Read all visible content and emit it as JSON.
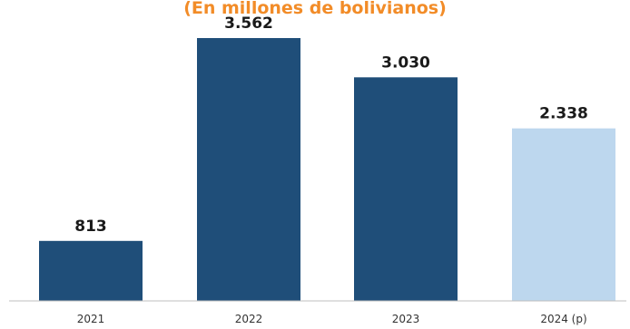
{
  "chart_data": {
    "type": "bar",
    "subtitle": "(En millones de bolivianos)",
    "categories": [
      "2021",
      "2022",
      "2023",
      "2024 (p)"
    ],
    "values": [
      813,
      3562,
      3030,
      2338
    ],
    "value_labels": [
      "813",
      "3.562",
      "3.030",
      "2.338"
    ],
    "xlabel": "",
    "ylabel": "",
    "ylim": [
      0,
      3562
    ],
    "grid": false,
    "legend": "none",
    "bar_colors": [
      "#1f4e79",
      "#1f4e79",
      "#1f4e79",
      "#bdd7ee"
    ],
    "subtitle_color": "#f28c28",
    "axis_color": "#bfbfbf"
  }
}
